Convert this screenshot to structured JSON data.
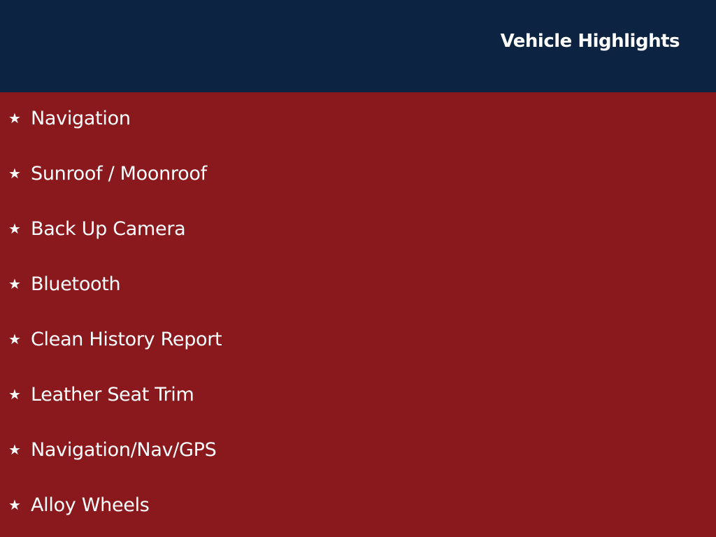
{
  "header": {
    "title": "Vehicle Highlights"
  },
  "highlights": [
    {
      "icon": "star-icon",
      "label": "Navigation"
    },
    {
      "icon": "star-icon",
      "label": "Sunroof / Moonroof"
    },
    {
      "icon": "star-icon",
      "label": "Back Up Camera"
    },
    {
      "icon": "star-icon",
      "label": "Bluetooth"
    },
    {
      "icon": "star-icon",
      "label": "Clean History Report"
    },
    {
      "icon": "star-icon",
      "label": "Leather Seat Trim"
    },
    {
      "icon": "star-icon",
      "label": "Navigation/Nav/GPS"
    },
    {
      "icon": "star-icon",
      "label": "Alloy Wheels"
    }
  ],
  "colors": {
    "header_bg": "#0c2341",
    "body_bg": "#8a191d",
    "text": "#ffffff"
  }
}
